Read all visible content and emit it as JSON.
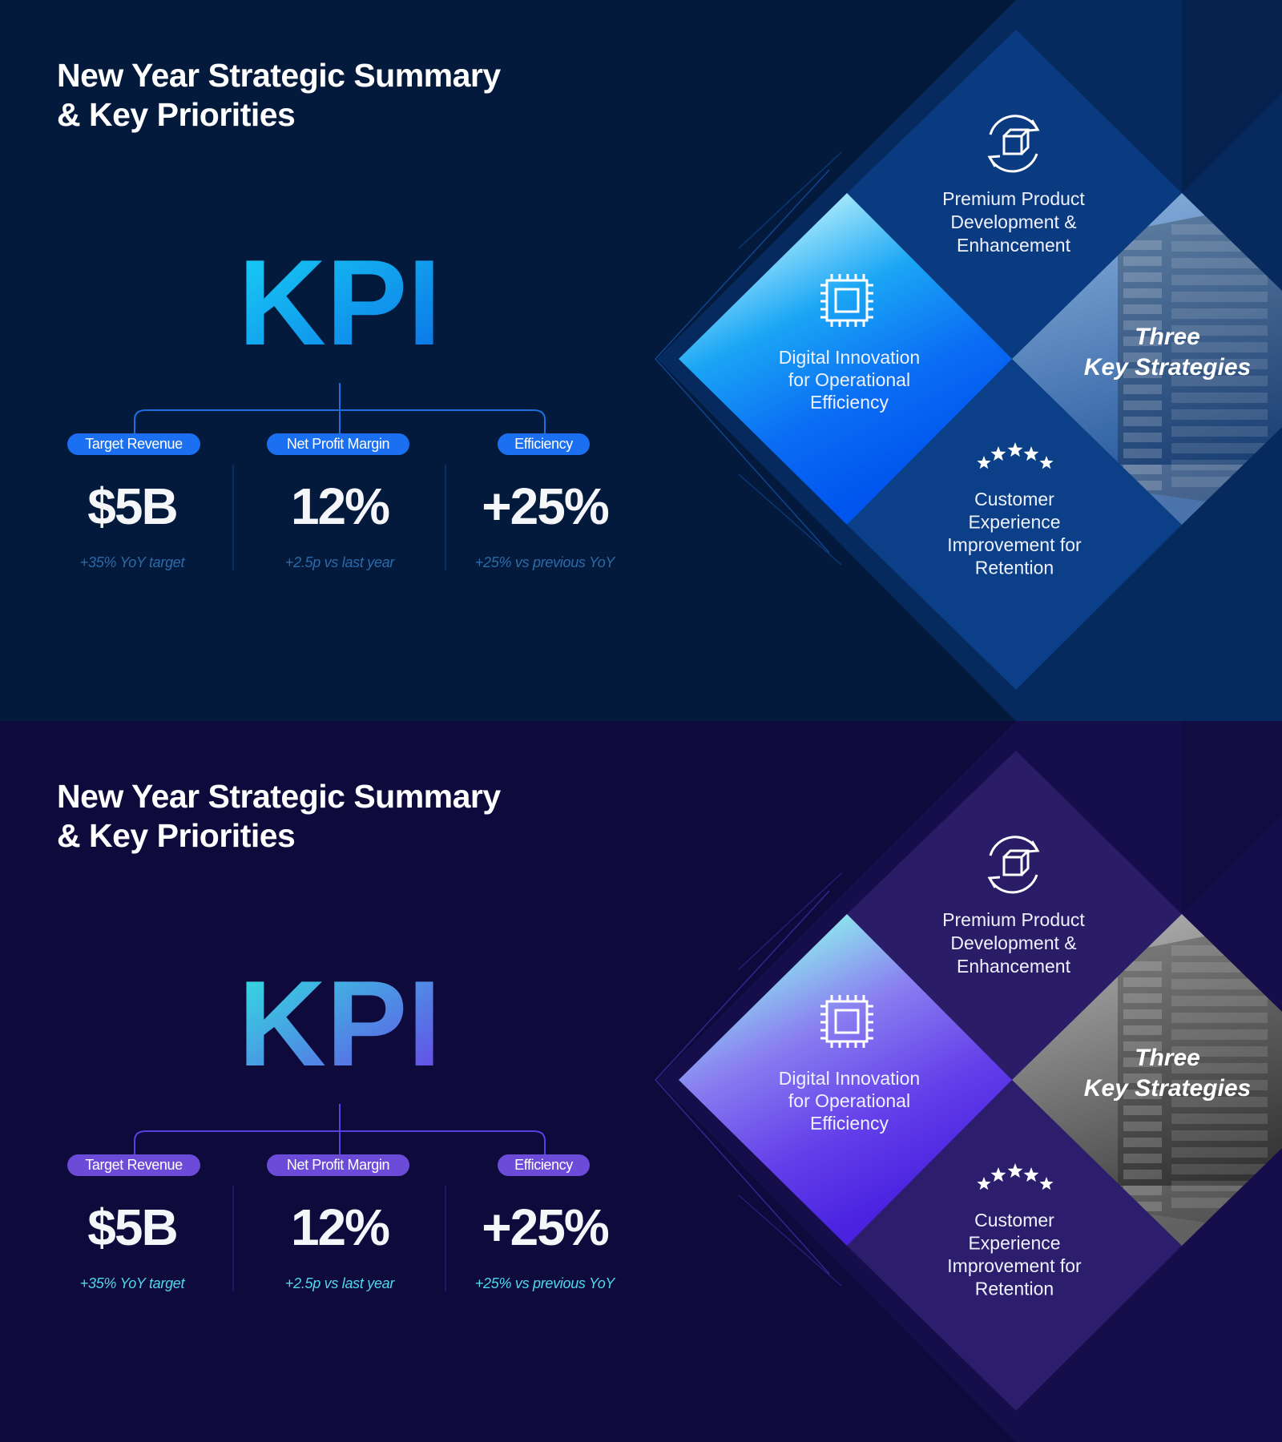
{
  "slides": [
    {
      "theme": {
        "background": "#031a3d",
        "panel": "#062a5e",
        "diamond": "#0a3a80",
        "diamond_alt": "#0b3f88",
        "line": "#1e6fe0",
        "pill": "#1a70f0",
        "subtext": "#2d6aa8",
        "kpi_gradient": [
          "#19d3f5",
          "#0a6fe6"
        ],
        "center_gradient": [
          "#b9f1fb",
          "#1aa6f5",
          "#0a6cf4",
          "#0055ee"
        ],
        "building_tint": [
          "#8fb6e0",
          "#1d4f96"
        ]
      },
      "title": [
        "New Year Strategic Summary",
        "& Key Priorities"
      ],
      "kpi_label": "KPI",
      "kpis": [
        {
          "label": "Target Revenue",
          "value": "$5B",
          "note": "+35% YoY target"
        },
        {
          "label": "Net Profit Margin",
          "value": "12%",
          "note": "+2.5p vs last year"
        },
        {
          "label": "Efficiency",
          "value": "+25%",
          "note": "+25% vs previous YoY"
        }
      ],
      "strategies": {
        "top": {
          "icon": "box-cycle-icon",
          "lines": [
            "Premium Product",
            "Development &",
            "Enhancement"
          ]
        },
        "center": {
          "icon": "chip-icon",
          "lines": [
            "Digital Innovation",
            "for Operational",
            "Efficiency"
          ]
        },
        "bottom": {
          "icon": "stars-icon",
          "lines": [
            "Customer",
            "Experience",
            "Improvement for",
            "Retention"
          ]
        },
        "heading": [
          "Three",
          "Key Strategies"
        ]
      }
    },
    {
      "theme": {
        "background": "#0f0a3c",
        "panel": "#150e4a",
        "diamond": "#2a1c66",
        "diamond_alt": "#2c1e6c",
        "line": "#5b3fe0",
        "pill": "#6b4bd8",
        "subtext": "#4fd8ec",
        "kpi_gradient": [
          "#2ee8e0",
          "#6a3ee8"
        ],
        "center_gradient": [
          "#8ef2ee",
          "#8a7ef0",
          "#6440ea",
          "#4a22e0"
        ],
        "building_tint": [
          "#b8b8b8",
          "#3a3a3a"
        ]
      },
      "title": [
        "New Year Strategic Summary",
        "& Key Priorities"
      ],
      "kpi_label": "KPI",
      "kpis": [
        {
          "label": "Target Revenue",
          "value": "$5B",
          "note": "+35% YoY target"
        },
        {
          "label": "Net Profit Margin",
          "value": "12%",
          "note": "+2.5p vs last year"
        },
        {
          "label": "Efficiency",
          "value": "+25%",
          "note": "+25% vs previous YoY"
        }
      ],
      "strategies": {
        "top": {
          "icon": "box-cycle-icon",
          "lines": [
            "Premium Product",
            "Development &",
            "Enhancement"
          ]
        },
        "center": {
          "icon": "chip-icon",
          "lines": [
            "Digital Innovation",
            "for Operational",
            "Efficiency"
          ]
        },
        "bottom": {
          "icon": "stars-icon",
          "lines": [
            "Customer",
            "Experience",
            "Improvement for",
            "Retention"
          ]
        },
        "heading": [
          "Three",
          "Key Strategies"
        ]
      }
    }
  ]
}
